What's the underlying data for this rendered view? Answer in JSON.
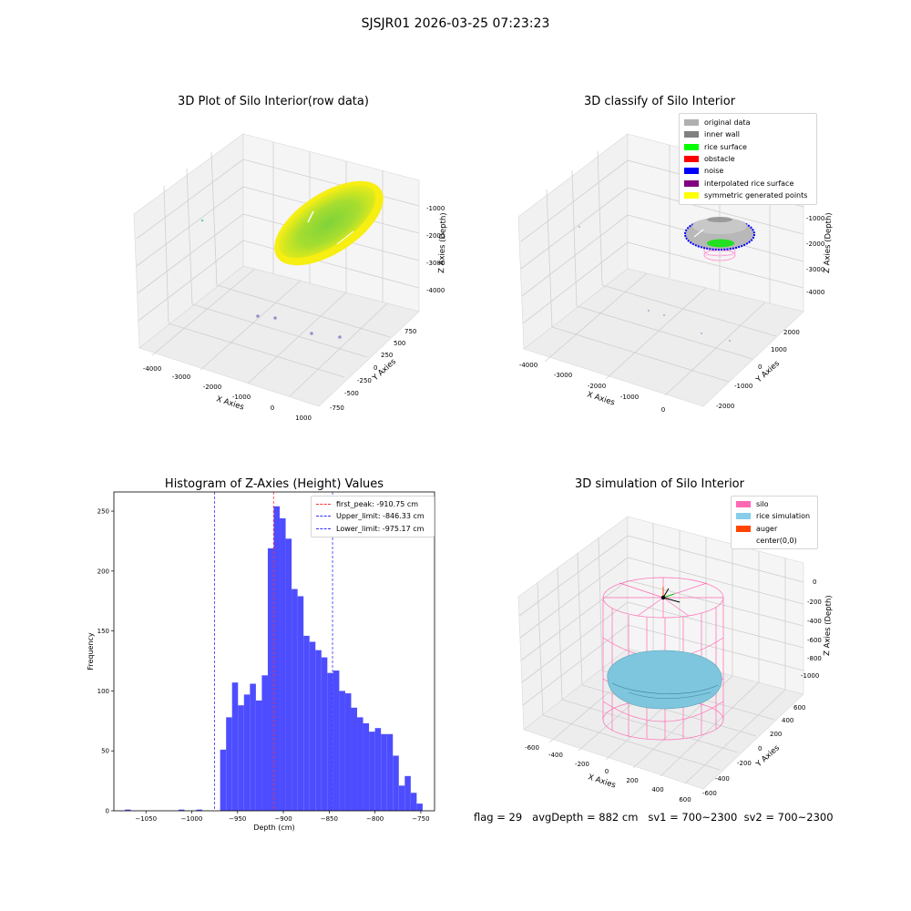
{
  "figure_title": "SJSJR01 2026-03-25 07:23:23",
  "footer": {
    "flag": "flag = 29",
    "avg_depth": "avgDepth = 882 cm",
    "sv1": "sv1 = 700~2300",
    "sv2": "sv2 = 700~2300"
  },
  "colors": {
    "histogram_bar": "#4d4dff",
    "first_peak_line": "#ff3333",
    "limit_line": "#3333ff",
    "original_data": "#b0b0b0",
    "inner_wall": "#808080",
    "rice_surface": "#00ff00",
    "obstacle": "#ff0000",
    "noise": "#0000ff",
    "interpolated_rice_surface": "#800080",
    "symmetric_generated_points": "#ffff00",
    "silo": "#ff69b4",
    "rice_simulation": "#87ceeb",
    "auger": "#ff4500"
  },
  "chart_data": [
    {
      "type": "scatter",
      "title": "3D Plot of Silo Interior(row data)",
      "xlabel": "X Axies",
      "ylabel": "Y Axies",
      "zlabel": "Z Axies (Depth)",
      "x_ticks": [
        "-4000",
        "-3000",
        "-2000",
        "-1000",
        "0",
        "1000"
      ],
      "y_ticks": [
        "-750",
        "-500",
        "-250",
        "0",
        "250",
        "500",
        "750"
      ],
      "z_ticks": [
        "-1000",
        "-2000",
        "-3000",
        "-4000"
      ]
    },
    {
      "type": "scatter",
      "title": "3D classify of Silo Interior",
      "xlabel": "X Axies",
      "ylabel": "Y Axies",
      "zlabel": "Z Axies (Depth)",
      "x_ticks": [
        "-4000",
        "-3000",
        "-2000",
        "-1000",
        "0"
      ],
      "y_ticks": [
        "-2000",
        "-1000",
        "0",
        "1000",
        "2000"
      ],
      "z_ticks": [
        "-1000",
        "-2000",
        "-3000",
        "-4000"
      ],
      "legend": [
        "original data",
        "inner wall",
        "rice surface",
        "obstacle",
        "noise",
        "interpolated rice surface",
        "symmetric generated points"
      ],
      "legend_position": "top-right"
    },
    {
      "type": "bar",
      "title": "Histogram of Z-Axies (Height) Values",
      "xlabel": "Depth (cm)",
      "ylabel": "Frequency",
      "xlim": [
        -1085,
        -735
      ],
      "ylim": [
        0,
        266
      ],
      "x_ticks": [
        -1050,
        -1000,
        -950,
        -900,
        -850,
        -800,
        -750
      ],
      "x_tick_labels": [
        "−1050",
        "−1000",
        "−950",
        "−900",
        "−850",
        "−800",
        "−750"
      ],
      "y_ticks": [
        0,
        50,
        100,
        150,
        200,
        250
      ],
      "y_tick_labels": [
        "0",
        "50",
        "100",
        "150",
        "200",
        "250"
      ],
      "bins": [
        {
          "x0": -1073.0,
          "x1": -1066.5,
          "count": 1
        },
        {
          "x0": -1014.5,
          "x1": -1008.0,
          "count": 1
        },
        {
          "x0": -995.0,
          "x1": -988.5,
          "count": 1
        },
        {
          "x0": -969.0,
          "x1": -962.5,
          "count": 51
        },
        {
          "x0": -962.5,
          "x1": -956.0,
          "count": 78
        },
        {
          "x0": -956.0,
          "x1": -949.5,
          "count": 107
        },
        {
          "x0": -949.5,
          "x1": -943.0,
          "count": 88
        },
        {
          "x0": -943.0,
          "x1": -936.5,
          "count": 97
        },
        {
          "x0": -936.5,
          "x1": -930.0,
          "count": 106
        },
        {
          "x0": -930.0,
          "x1": -923.5,
          "count": 92
        },
        {
          "x0": -923.5,
          "x1": -917.0,
          "count": 113
        },
        {
          "x0": -917.0,
          "x1": -910.5,
          "count": 219
        },
        {
          "x0": -910.5,
          "x1": -904.0,
          "count": 254
        },
        {
          "x0": -904.0,
          "x1": -897.5,
          "count": 244
        },
        {
          "x0": -897.5,
          "x1": -891.0,
          "count": 227
        },
        {
          "x0": -891.0,
          "x1": -884.5,
          "count": 185
        },
        {
          "x0": -884.5,
          "x1": -878.0,
          "count": 179
        },
        {
          "x0": -878.0,
          "x1": -871.5,
          "count": 146
        },
        {
          "x0": -871.5,
          "x1": -865.0,
          "count": 141
        },
        {
          "x0": -865.0,
          "x1": -858.5,
          "count": 134
        },
        {
          "x0": -858.5,
          "x1": -852.0,
          "count": 128
        },
        {
          "x0": -852.0,
          "x1": -845.5,
          "count": 115
        },
        {
          "x0": -845.5,
          "x1": -839.0,
          "count": 117
        },
        {
          "x0": -839.0,
          "x1": -832.5,
          "count": 100
        },
        {
          "x0": -832.5,
          "x1": -826.0,
          "count": 98
        },
        {
          "x0": -826.0,
          "x1": -819.5,
          "count": 86
        },
        {
          "x0": -819.5,
          "x1": -813.0,
          "count": 78
        },
        {
          "x0": -813.0,
          "x1": -806.5,
          "count": 73
        },
        {
          "x0": -806.5,
          "x1": -800.0,
          "count": 66
        },
        {
          "x0": -800.0,
          "x1": -793.5,
          "count": 69
        },
        {
          "x0": -793.5,
          "x1": -787.0,
          "count": 64
        },
        {
          "x0": -787.0,
          "x1": -780.5,
          "count": 64
        },
        {
          "x0": -780.5,
          "x1": -774.0,
          "count": 46
        },
        {
          "x0": -774.0,
          "x1": -767.5,
          "count": 21
        },
        {
          "x0": -767.5,
          "x1": -761.0,
          "count": 29
        },
        {
          "x0": -761.0,
          "x1": -754.5,
          "count": 15
        },
        {
          "x0": -754.5,
          "x1": -748.0,
          "count": 6
        }
      ],
      "vlines": [
        {
          "label": "first_peak: -910.75 cm",
          "x": -910.75,
          "color": "#ff3333"
        },
        {
          "label": "Upper_limit: -846.33 cm",
          "x": -846.33,
          "color": "#3333ff"
        },
        {
          "label": "Lower_limit: -975.17 cm",
          "x": -975.17,
          "color": "#3333ff"
        }
      ],
      "legend_position": "top-right"
    },
    {
      "type": "scatter",
      "title": "3D simulation of Silo Interior",
      "xlabel": "X Axies",
      "ylabel": "Y Axies",
      "zlabel": "Z Axies (Depth)",
      "x_ticks": [
        "-600",
        "-400",
        "-200",
        "0",
        "200",
        "400",
        "600"
      ],
      "y_ticks": [
        "-600",
        "-400",
        "-200",
        "0",
        "200",
        "400",
        "600"
      ],
      "z_ticks": [
        "0",
        "-200",
        "-400",
        "-600",
        "-800",
        "-1000"
      ],
      "legend": [
        "silo",
        "rice simulation",
        "auger",
        "center(0,0)"
      ],
      "legend_position": "top-right"
    }
  ]
}
